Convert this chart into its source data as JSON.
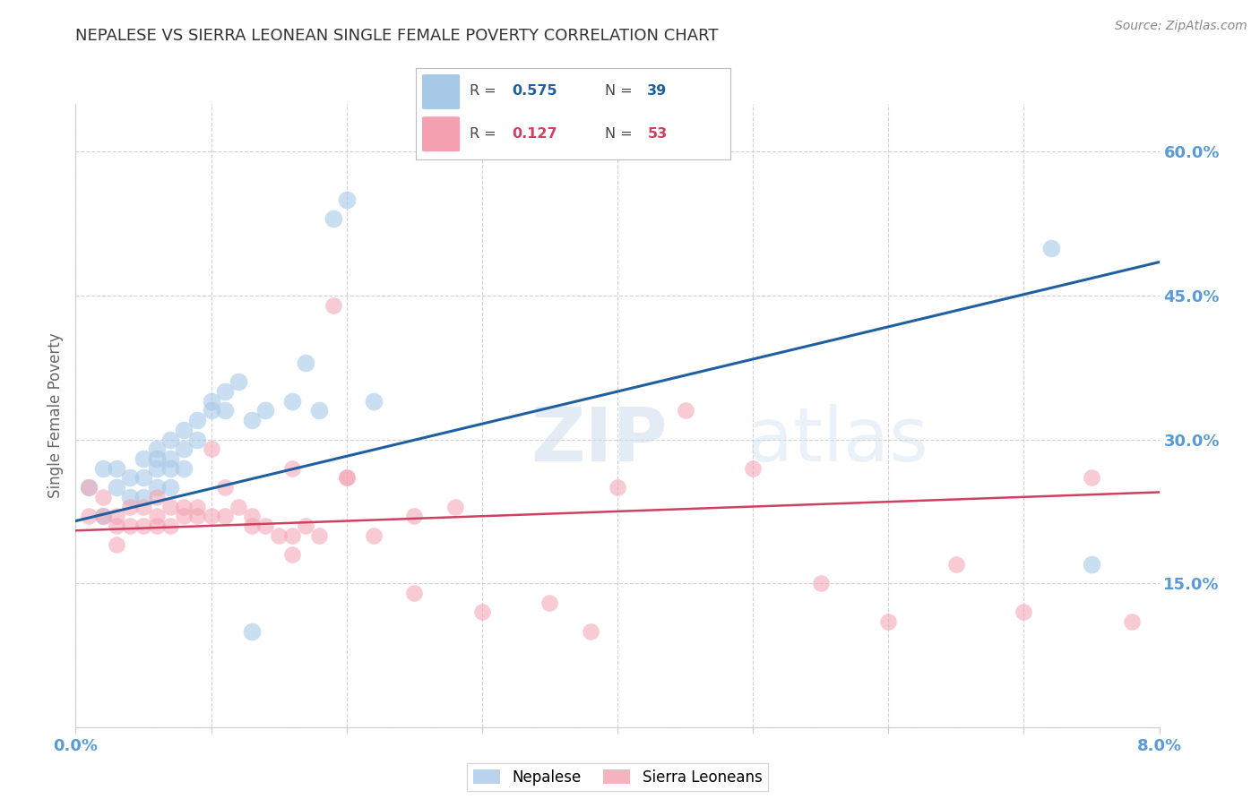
{
  "title": "NEPALESE VS SIERRA LEONEAN SINGLE FEMALE POVERTY CORRELATION CHART",
  "source": "Source: ZipAtlas.com",
  "ylabel": "Single Female Poverty",
  "yticks": [
    0.0,
    0.15,
    0.3,
    0.45,
    0.6
  ],
  "ytick_labels": [
    "",
    "15.0%",
    "30.0%",
    "45.0%",
    "60.0%"
  ],
  "xlim": [
    0.0,
    0.08
  ],
  "ylim": [
    0.0,
    0.65
  ],
  "blue_color": "#a8c8e8",
  "pink_color": "#f4a0b0",
  "blue_line_color": "#2060a0",
  "pink_line_color": "#d04060",
  "axis_label_color": "#5b9bd5",
  "watermark_zip": "ZIP",
  "watermark_atlas": "atlas",
  "nepalese_x": [
    0.001,
    0.002,
    0.002,
    0.003,
    0.003,
    0.004,
    0.004,
    0.005,
    0.005,
    0.005,
    0.006,
    0.006,
    0.006,
    0.006,
    0.007,
    0.007,
    0.007,
    0.007,
    0.008,
    0.008,
    0.008,
    0.009,
    0.009,
    0.01,
    0.01,
    0.011,
    0.011,
    0.012,
    0.013,
    0.013,
    0.014,
    0.016,
    0.017,
    0.018,
    0.019,
    0.02,
    0.022,
    0.072,
    0.075
  ],
  "nepalese_y": [
    0.25,
    0.27,
    0.22,
    0.27,
    0.25,
    0.26,
    0.24,
    0.28,
    0.26,
    0.24,
    0.29,
    0.28,
    0.27,
    0.25,
    0.3,
    0.28,
    0.27,
    0.25,
    0.31,
    0.29,
    0.27,
    0.32,
    0.3,
    0.34,
    0.33,
    0.35,
    0.33,
    0.36,
    0.32,
    0.1,
    0.33,
    0.34,
    0.38,
    0.33,
    0.53,
    0.55,
    0.34,
    0.5,
    0.17
  ],
  "sierra_x": [
    0.001,
    0.001,
    0.002,
    0.002,
    0.003,
    0.003,
    0.003,
    0.004,
    0.004,
    0.005,
    0.005,
    0.006,
    0.006,
    0.006,
    0.007,
    0.007,
    0.008,
    0.008,
    0.009,
    0.009,
    0.01,
    0.01,
    0.011,
    0.011,
    0.012,
    0.013,
    0.013,
    0.014,
    0.015,
    0.016,
    0.016,
    0.017,
    0.018,
    0.019,
    0.02,
    0.022,
    0.025,
    0.028,
    0.03,
    0.035,
    0.038,
    0.04,
    0.045,
    0.05,
    0.055,
    0.06,
    0.065,
    0.07,
    0.075,
    0.078,
    0.016,
    0.02,
    0.025
  ],
  "sierra_y": [
    0.25,
    0.22,
    0.24,
    0.22,
    0.22,
    0.21,
    0.19,
    0.23,
    0.21,
    0.23,
    0.21,
    0.24,
    0.22,
    0.21,
    0.23,
    0.21,
    0.23,
    0.22,
    0.23,
    0.22,
    0.29,
    0.22,
    0.25,
    0.22,
    0.23,
    0.22,
    0.21,
    0.21,
    0.2,
    0.18,
    0.27,
    0.21,
    0.2,
    0.44,
    0.26,
    0.2,
    0.14,
    0.23,
    0.12,
    0.13,
    0.1,
    0.25,
    0.33,
    0.27,
    0.15,
    0.11,
    0.17,
    0.12,
    0.26,
    0.11,
    0.2,
    0.26,
    0.22
  ],
  "blue_trendline_x": [
    0.0,
    0.08
  ],
  "blue_trendline_y": [
    0.215,
    0.485
  ],
  "pink_trendline_x": [
    0.0,
    0.08
  ],
  "pink_trendline_y": [
    0.205,
    0.245
  ]
}
